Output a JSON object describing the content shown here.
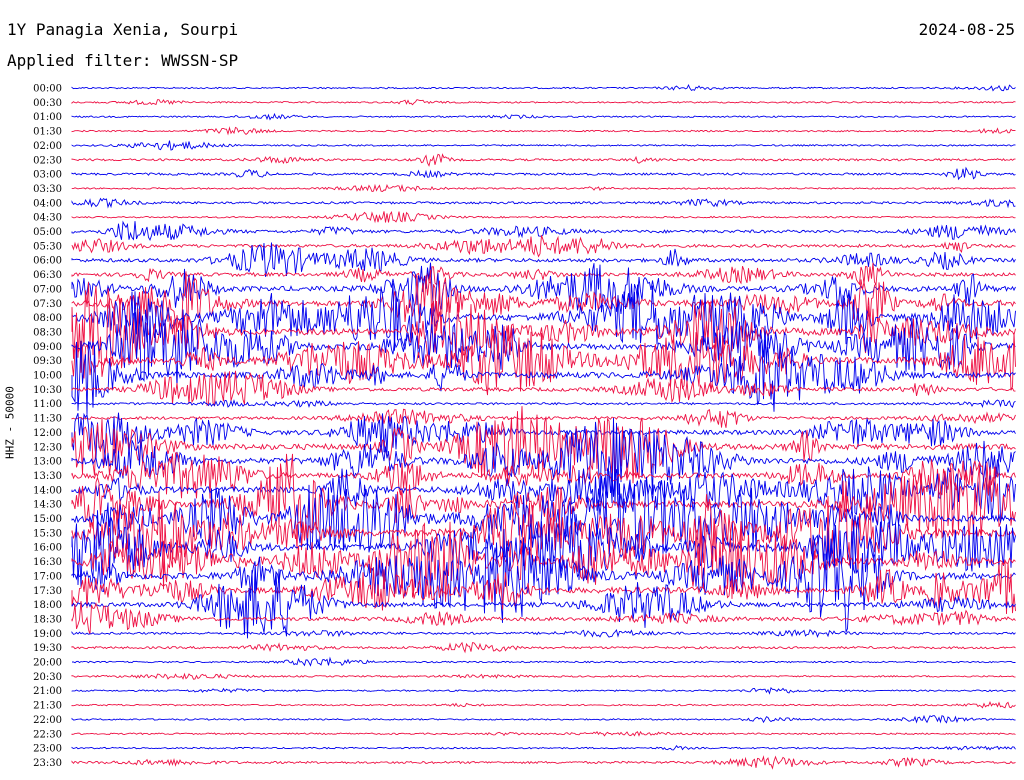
{
  "header": {
    "station": "1Y Panagia Xenia, Sourpi",
    "date": "2024-08-25",
    "filter": "Applied filter: WWSSN-SP"
  },
  "chart_data": {
    "type": "line",
    "title": "1Y Panagia Xenia, Sourpi",
    "ylabel": "HHZ - 50000",
    "row_labels": [
      "00:00",
      "00:30",
      "01:00",
      "01:30",
      "02:00",
      "02:30",
      "03:00",
      "03:30",
      "04:00",
      "04:30",
      "05:00",
      "05:30",
      "06:00",
      "06:30",
      "07:00",
      "07:30",
      "08:00",
      "08:30",
      "09:00",
      "09:30",
      "10:00",
      "10:30",
      "11:00",
      "11:30",
      "12:00",
      "12:30",
      "13:00",
      "13:30",
      "14:00",
      "14:30",
      "15:00",
      "15:30",
      "16:00",
      "16:30",
      "17:00",
      "17:30",
      "18:00",
      "18:30",
      "19:00",
      "19:30",
      "20:00",
      "20:30",
      "21:00",
      "21:30",
      "22:00",
      "22:30",
      "23:00",
      "23:30"
    ],
    "series_colors": [
      "#0000ee",
      "#ee1144"
    ],
    "activity_level": [
      1,
      1,
      1,
      1,
      1,
      2,
      2,
      1,
      2,
      1,
      3,
      3,
      4,
      4,
      6,
      7,
      8,
      8,
      8,
      8,
      7,
      4,
      2,
      3,
      5,
      7,
      7,
      6,
      7,
      8,
      9,
      9,
      9,
      9,
      8,
      7,
      5,
      4,
      2,
      2,
      1,
      1,
      1,
      1,
      1,
      1,
      1,
      2
    ]
  }
}
